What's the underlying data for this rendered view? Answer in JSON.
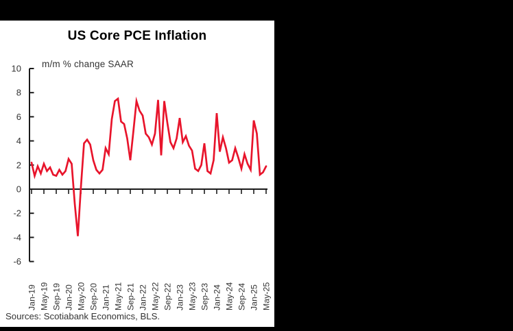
{
  "header": {
    "title": "US Core PCE Inflation"
  },
  "footer": {
    "source": "Sources: Scotiabank Economics, BLS."
  },
  "colors": {
    "line": "#e8142b",
    "frame": "#000000",
    "panel": "#ffffff",
    "axis": "#1a1a1a",
    "tick_text": "#333333"
  },
  "chart_data": {
    "type": "line",
    "title": "US Core PCE Inflation",
    "subtitle_label": "m/m % change SAAR",
    "series_name": "US core PCE inflation, m/m % change SAAR",
    "grid": false,
    "legend": "none",
    "ylim": [
      -6,
      10
    ],
    "y_ticks": [
      10,
      8,
      6,
      4,
      2,
      0,
      -2,
      -4,
      -6
    ],
    "x_tick_labels": [
      "Jan-19",
      "May-19",
      "Sep-19",
      "Jan-20",
      "May-20",
      "Sep-20",
      "Jan-21",
      "May-21",
      "Sep-21",
      "Jan-22",
      "May-22",
      "Sep-22",
      "Jan-23",
      "May-23",
      "Sep-23",
      "Jan-24",
      "May-24",
      "Sep-24",
      "Jan-25",
      "May-25"
    ],
    "x": [
      "Jan-19",
      "Feb-19",
      "Mar-19",
      "Apr-19",
      "May-19",
      "Jun-19",
      "Jul-19",
      "Aug-19",
      "Sep-19",
      "Oct-19",
      "Nov-19",
      "Dec-19",
      "Jan-20",
      "Feb-20",
      "Mar-20",
      "Apr-20",
      "May-20",
      "Jun-20",
      "Jul-20",
      "Aug-20",
      "Sep-20",
      "Oct-20",
      "Nov-20",
      "Dec-20",
      "Jan-21",
      "Feb-21",
      "Mar-21",
      "Apr-21",
      "May-21",
      "Jun-21",
      "Jul-21",
      "Aug-21",
      "Sep-21",
      "Oct-21",
      "Nov-21",
      "Dec-21",
      "Jan-22",
      "Feb-22",
      "Mar-22",
      "Apr-22",
      "May-22",
      "Jun-22",
      "Jul-22",
      "Aug-22",
      "Sep-22",
      "Oct-22",
      "Nov-22",
      "Dec-22",
      "Jan-23",
      "Feb-23",
      "Mar-23",
      "Apr-23",
      "May-23",
      "Jun-23",
      "Jul-23",
      "Aug-23",
      "Sep-23",
      "Oct-23",
      "Nov-23",
      "Dec-23",
      "Jan-24",
      "Feb-24",
      "Mar-24",
      "Apr-24",
      "May-24",
      "Jun-24",
      "Jul-24",
      "Aug-24",
      "Sep-24",
      "Oct-24",
      "Nov-24",
      "Dec-24",
      "Jan-25",
      "Feb-25",
      "Mar-25",
      "Apr-25",
      "May-25"
    ],
    "values": [
      2.2,
      1.1,
      1.9,
      1.3,
      2.1,
      1.5,
      1.8,
      1.2,
      1.1,
      1.6,
      1.2,
      1.5,
      2.5,
      2.1,
      -1.2,
      -3.9,
      0.2,
      3.8,
      4.1,
      3.7,
      2.4,
      1.6,
      1.3,
      1.6,
      3.4,
      2.9,
      5.8,
      7.3,
      7.5,
      5.6,
      5.4,
      4.2,
      2.4,
      4.8,
      7.3,
      6.5,
      6.1,
      4.6,
      4.3,
      3.7,
      4.6,
      7.4,
      2.8,
      7.3,
      5.5,
      3.9,
      3.4,
      4.2,
      5.9,
      3.9,
      4.4,
      3.6,
      3.2,
      1.7,
      1.5,
      2.0,
      3.8,
      1.5,
      1.3,
      2.4,
      6.3,
      3.1,
      4.3,
      3.4,
      2.2,
      2.4,
      3.4,
      2.6,
      1.7,
      2.9,
      2.1,
      1.6,
      5.7,
      4.6,
      1.2,
      1.4,
      1.9
    ]
  }
}
